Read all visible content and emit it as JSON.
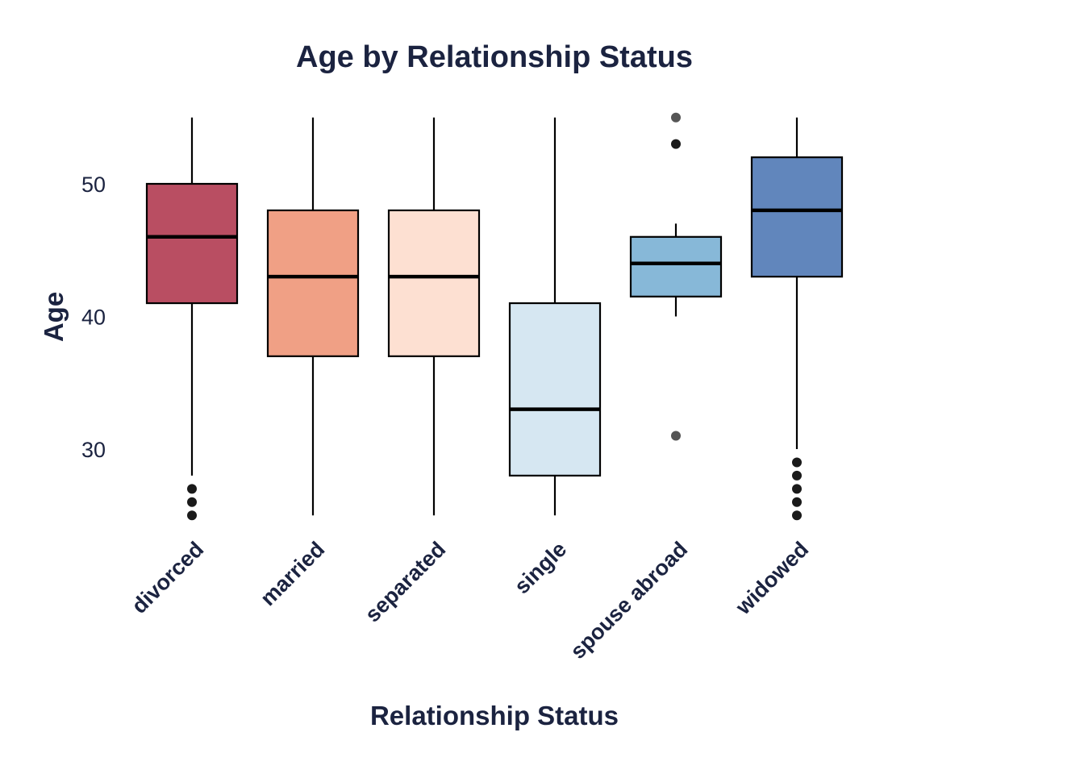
{
  "chart_data": {
    "type": "box",
    "title": "Age by Relationship Status",
    "xlabel": "Relationship Status",
    "ylabel": "Age",
    "ylim": [
      24,
      56
    ],
    "yticks": [
      30,
      40,
      50
    ],
    "grid": false,
    "legend": "none",
    "categories": [
      "divorced",
      "married",
      "separated",
      "single",
      "spouse abroad",
      "widowed"
    ],
    "boxes": [
      {
        "category": "divorced",
        "whisker_low": 28,
        "q1": 41,
        "median": 46,
        "q3": 50,
        "whisker_high": 55,
        "outliers": [
          25,
          26,
          27
        ],
        "color": "#b94e62"
      },
      {
        "category": "married",
        "whisker_low": 25,
        "q1": 37,
        "median": 43,
        "q3": 48,
        "whisker_high": 55,
        "outliers": [],
        "color": "#f0a085"
      },
      {
        "category": "separated",
        "whisker_low": 25,
        "q1": 37,
        "median": 43,
        "q3": 48,
        "whisker_high": 55,
        "outliers": [],
        "color": "#fde0d2"
      },
      {
        "category": "single",
        "whisker_low": 25,
        "q1": 28,
        "median": 33,
        "q3": 41,
        "whisker_high": 55,
        "outliers": [],
        "color": "#d6e7f2"
      },
      {
        "category": "spouse abroad",
        "whisker_low": 40,
        "q1": 41.5,
        "median": 44,
        "q3": 46,
        "whisker_high": 47,
        "outliers": [
          31,
          53,
          55
        ],
        "color": "#87b8d8"
      },
      {
        "category": "widowed",
        "whisker_low": 30,
        "q1": 43,
        "median": 48,
        "q3": 52,
        "whisker_high": 55,
        "outliers": [
          25,
          26,
          27,
          28,
          29
        ],
        "color": "#6186bc"
      }
    ]
  }
}
